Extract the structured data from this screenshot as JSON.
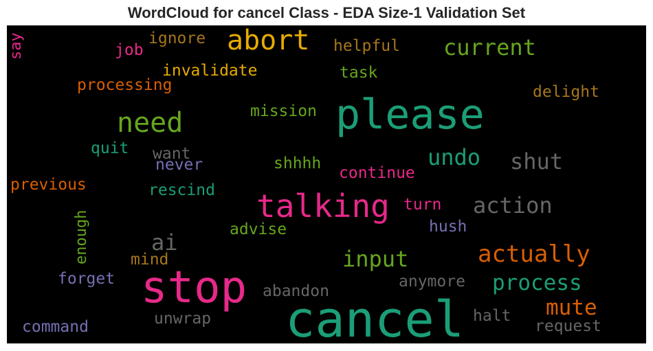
{
  "title": "WordCloud for cancel Class - EDA Size-1 Validation Set",
  "words": [
    {
      "text": "cancel",
      "color": "#1b9e77"
    },
    {
      "text": "please",
      "color": "#1b9e77"
    },
    {
      "text": "stop",
      "color": "#e7298a"
    },
    {
      "text": "talking",
      "color": "#e7298a"
    },
    {
      "text": "abort",
      "color": "#e6ab02"
    },
    {
      "text": "need",
      "color": "#66a61e"
    },
    {
      "text": "current",
      "color": "#66a61e"
    },
    {
      "text": "action",
      "color": "#666666"
    },
    {
      "text": "shut",
      "color": "#666666"
    },
    {
      "text": "undo",
      "color": "#1b9e77"
    },
    {
      "text": "actually",
      "color": "#d95f02"
    },
    {
      "text": "process",
      "color": "#1b9e77"
    },
    {
      "text": "mute",
      "color": "#d95f02"
    },
    {
      "text": "input",
      "color": "#66a61e"
    },
    {
      "text": "ai",
      "color": "#666666"
    },
    {
      "text": "invalidate",
      "color": "#e6ab02"
    },
    {
      "text": "processing",
      "color": "#d95f02"
    },
    {
      "text": "ignore",
      "color": "#a6761d"
    },
    {
      "text": "job",
      "color": "#e7298a"
    },
    {
      "text": "helpful",
      "color": "#a6761d"
    },
    {
      "text": "task",
      "color": "#66a61e"
    },
    {
      "text": "delight",
      "color": "#a6761d"
    },
    {
      "text": "mission",
      "color": "#66a61e"
    },
    {
      "text": "quit",
      "color": "#1b9e77"
    },
    {
      "text": "want",
      "color": "#666666"
    },
    {
      "text": "never",
      "color": "#7570b3"
    },
    {
      "text": "shhhh",
      "color": "#66a61e"
    },
    {
      "text": "continue",
      "color": "#e7298a"
    },
    {
      "text": "previous",
      "color": "#d95f02"
    },
    {
      "text": "rescind",
      "color": "#1b9e77"
    },
    {
      "text": "turn",
      "color": "#e7298a"
    },
    {
      "text": "advise",
      "color": "#66a61e"
    },
    {
      "text": "hush",
      "color": "#7570b3"
    },
    {
      "text": "mind",
      "color": "#a6761d"
    },
    {
      "text": "forget",
      "color": "#7570b3"
    },
    {
      "text": "abandon",
      "color": "#666666"
    },
    {
      "text": "anymore",
      "color": "#666666"
    },
    {
      "text": "halt",
      "color": "#666666"
    },
    {
      "text": "request",
      "color": "#666666"
    },
    {
      "text": "unwrap",
      "color": "#666666"
    },
    {
      "text": "command",
      "color": "#7570b3"
    },
    {
      "text": "say",
      "color": "#e7298a"
    },
    {
      "text": "enough",
      "color": "#66a61e"
    }
  ]
}
